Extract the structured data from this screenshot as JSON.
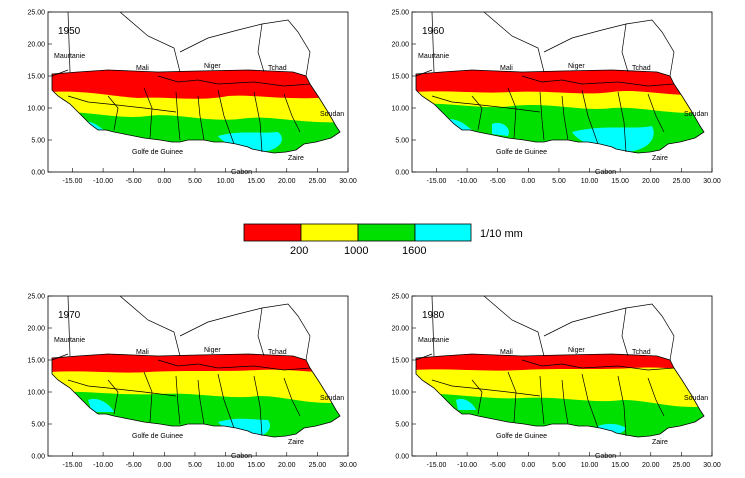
{
  "maps": [
    {
      "year": "1950",
      "variant": 0
    },
    {
      "year": "1960",
      "variant": 1
    },
    {
      "year": "1970",
      "variant": 2
    },
    {
      "year": "1980",
      "variant": 3
    }
  ],
  "axes": {
    "x_ticks": [
      "-15.00",
      "-10.00",
      "-5.00",
      "0.00",
      "5.00",
      "10.00",
      "15.00",
      "20.00",
      "25.00",
      "30.00"
    ],
    "y_ticks": [
      "0.00",
      "5.00",
      "10.00",
      "15.00",
      "20.00",
      "25.00"
    ],
    "x_values": [
      -15,
      -10,
      -5,
      0,
      5,
      10,
      15,
      20,
      25,
      30
    ],
    "y_values": [
      0,
      5,
      10,
      15,
      20,
      25
    ],
    "x_range": [
      -19,
      30
    ],
    "y_range": [
      0,
      25
    ]
  },
  "place_labels": {
    "mauritania": "Maurtanie",
    "mali": "Mali",
    "niger": "Niger",
    "chad": "Tchad",
    "sudan": "Soudan",
    "gulf": "Golfe de Guinee",
    "zaire": "Zaire",
    "gabon": "Gabon"
  },
  "legend": {
    "unit": "1/10 mm",
    "thresholds": [
      "200",
      "1000",
      "1600"
    ],
    "colors": [
      "#ff0000",
      "#ffff00",
      "#00e000",
      "#00ffff"
    ]
  }
}
